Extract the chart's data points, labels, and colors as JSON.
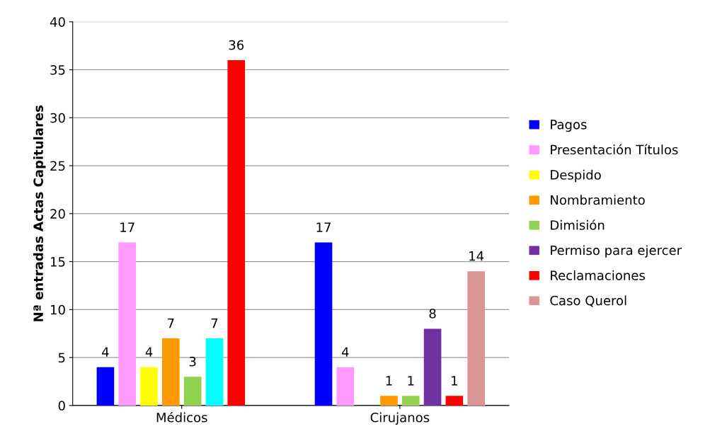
{
  "chart_data": {
    "type": "bar",
    "ylabel": "Nª entradas Actas Capitulares",
    "categories": [
      "Médicos",
      "Cirujanos"
    ],
    "series": [
      {
        "name": "Pagos",
        "color": "#0000ff",
        "values": [
          4,
          17
        ]
      },
      {
        "name": "Presentación Títulos",
        "color": "#ff99ff",
        "values": [
          17,
          4
        ]
      },
      {
        "name": "Despido",
        "color": "#ffff00",
        "values": [
          4,
          null
        ]
      },
      {
        "name": "Nombramiento",
        "color": "#ff9900",
        "values": [
          7,
          1
        ]
      },
      {
        "name": "Dimisión",
        "color": "#92d050",
        "values": [
          3,
          1
        ]
      },
      {
        "name": "Permiso para ejercer",
        "color": "#7030a0",
        "colors": [
          "#00ffff",
          "#7030a0"
        ],
        "values": [
          7,
          8
        ]
      },
      {
        "name": "Reclamaciones",
        "color": "#ff0000",
        "values": [
          36,
          1
        ]
      },
      {
        "name": "Caso Querol",
        "color": "#d99694",
        "values": [
          null,
          14
        ]
      }
    ],
    "ylim": [
      0,
      40
    ],
    "yticks": [
      0,
      5,
      10,
      15,
      20,
      25,
      30,
      35,
      40
    ],
    "grid": "y",
    "legend": "right",
    "data_labels": true
  }
}
